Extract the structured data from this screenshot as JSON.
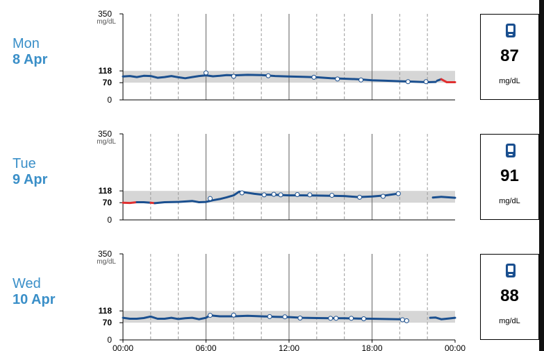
{
  "chart_data": [
    {
      "type": "line",
      "day_name": "Mon",
      "day_date": "8 Apr",
      "y_ticks": [
        "350",
        "118",
        "70",
        "0"
      ],
      "y_unit": "mg/dL",
      "ylim": [
        0,
        350
      ],
      "target_range": [
        70,
        118
      ],
      "xlim": [
        0,
        24
      ],
      "x_tick_labels": [],
      "series": [
        {
          "segments": [
            {
              "color": "#1a4f8f",
              "points": [
                [
                  0,
                  95
                ],
                [
                  0.5,
                  97
                ],
                [
                  1,
                  93
                ],
                [
                  1.5,
                  98
                ],
                [
                  2,
                  97
                ],
                [
                  2.5,
                  90
                ],
                [
                  3,
                  93
                ],
                [
                  3.5,
                  97
                ],
                [
                  4,
                  92
                ],
                [
                  4.5,
                  88
                ],
                [
                  5,
                  93
                ],
                [
                  5.5,
                  97
                ],
                [
                  6,
                  100
                ],
                [
                  6.5,
                  96
                ],
                [
                  7,
                  98
                ],
                [
                  7.5,
                  101
                ],
                [
                  8,
                  100
                ],
                [
                  9,
                  102
                ],
                [
                  10,
                  101
                ],
                [
                  11,
                  97
                ],
                [
                  12,
                  95
                ],
                [
                  13,
                  94
                ],
                [
                  14,
                  92
                ],
                [
                  15,
                  88
                ],
                [
                  16,
                  86
                ],
                [
                  17,
                  84
                ],
                [
                  18,
                  80
                ],
                [
                  19,
                  78
                ],
                [
                  20,
                  76
                ],
                [
                  21,
                  74
                ],
                [
                  22,
                  72
                ],
                [
                  22.6,
                  73
                ]
              ]
            },
            {
              "color": "#1a4f8f",
              "points": [
                [
                  22.7,
                  78
                ],
                [
                  23,
                  84
                ]
              ]
            },
            {
              "color": "#e03030",
              "points": [
                [
                  23,
                  84
                ],
                [
                  23.4,
                  72
                ],
                [
                  24,
                  72
                ]
              ]
            }
          ]
        }
      ],
      "markers": [
        [
          6,
          110
        ],
        [
          8,
          96
        ],
        [
          10.5,
          98
        ],
        [
          13.8,
          92
        ],
        [
          15.5,
          85
        ],
        [
          17.2,
          81
        ],
        [
          20.6,
          74
        ],
        [
          21.9,
          74
        ]
      ],
      "reading": {
        "value": "87",
        "unit": "mg/dL"
      }
    },
    {
      "type": "line",
      "day_name": "Tue",
      "day_date": "9 Apr",
      "y_ticks": [
        "350",
        "118",
        "70",
        "0"
      ],
      "y_unit": "mg/dL",
      "ylim": [
        0,
        350
      ],
      "target_range": [
        70,
        118
      ],
      "xlim": [
        0,
        24
      ],
      "x_tick_labels": [],
      "series": [
        {
          "segments": [
            {
              "color": "#e03030",
              "points": [
                [
                  0,
                  70
                ],
                [
                  0.5,
                  69
                ],
                [
                  1,
                  72
                ]
              ]
            },
            {
              "color": "#1a4f8f",
              "points": [
                [
                  1,
                  72
                ],
                [
                  1.5,
                  72
                ],
                [
                  2,
                  70
                ]
              ]
            },
            {
              "color": "#e03030",
              "points": [
                [
                  2,
                  70
                ],
                [
                  2.3,
                  68
                ]
              ]
            },
            {
              "color": "#1a4f8f",
              "points": [
                [
                  2.3,
                  68
                ],
                [
                  3,
                  72
                ],
                [
                  4,
                  73
                ],
                [
                  5,
                  77
                ],
                [
                  5.5,
                  72
                ],
                [
                  6,
                  73
                ],
                [
                  6.5,
                  80
                ],
                [
                  7,
                  85
                ],
                [
                  7.5,
                  92
                ],
                [
                  8,
                  100
                ],
                [
                  8.4,
                  115
                ],
                [
                  8.8,
                  112
                ],
                [
                  9.5,
                  106
                ],
                [
                  10,
                  103
                ],
                [
                  11,
                  102
                ],
                [
                  12,
                  100
                ],
                [
                  13,
                  100
                ],
                [
                  14,
                  99
                ],
                [
                  15,
                  98
                ],
                [
                  16,
                  97
                ],
                [
                  17,
                  93
                ],
                [
                  18,
                  95
                ],
                [
                  19,
                  100
                ],
                [
                  19.4,
                  103
                ],
                [
                  19.9,
                  107
                ]
              ]
            },
            {
              "color": "#1a4f8f",
              "points": [
                [
                  22.4,
                  91
                ],
                [
                  23,
                  94
                ],
                [
                  24,
                  90
                ]
              ]
            }
          ]
        }
      ],
      "markers": [
        [
          6.3,
          87
        ],
        [
          8.6,
          110
        ],
        [
          10.2,
          102
        ],
        [
          10.9,
          104
        ],
        [
          11.4,
          102
        ],
        [
          12.6,
          103
        ],
        [
          13.5,
          102
        ],
        [
          15.1,
          100
        ],
        [
          17.1,
          92
        ],
        [
          18.8,
          96
        ],
        [
          19.9,
          107
        ]
      ],
      "reading": {
        "value": "91",
        "unit": "mg/dL"
      }
    },
    {
      "type": "line",
      "day_name": "Wed",
      "day_date": "10 Apr",
      "y_ticks": [
        "350",
        "118",
        "70",
        "0"
      ],
      "y_unit": "mg/dL",
      "ylim": [
        0,
        350
      ],
      "target_range": [
        70,
        118
      ],
      "xlim": [
        0,
        24
      ],
      "x_tick_labels": [
        "00:00",
        "06:00",
        "12:00",
        "18:00",
        "00:00"
      ],
      "series": [
        {
          "segments": [
            {
              "color": "#1a4f8f",
              "points": [
                [
                  0,
                  90
                ],
                [
                  0.5,
                  86
                ],
                [
                  1,
                  86
                ],
                [
                  1.5,
                  89
                ],
                [
                  2,
                  95
                ],
                [
                  2.5,
                  86
                ],
                [
                  3,
                  86
                ],
                [
                  3.5,
                  90
                ],
                [
                  4,
                  85
                ],
                [
                  4.5,
                  88
                ],
                [
                  5,
                  90
                ],
                [
                  5.5,
                  84
                ],
                [
                  6,
                  90
                ],
                [
                  6.3,
                  100
                ],
                [
                  6.6,
                  98
                ],
                [
                  7,
                  96
                ],
                [
                  8,
                  96
                ],
                [
                  9,
                  98
                ],
                [
                  10,
                  96
                ],
                [
                  11,
                  94
                ],
                [
                  12,
                  93
                ],
                [
                  13,
                  90
                ],
                [
                  14,
                  89
                ],
                [
                  15,
                  88
                ],
                [
                  16,
                  88
                ],
                [
                  17,
                  87
                ],
                [
                  18,
                  86
                ],
                [
                  19,
                  85
                ],
                [
                  20,
                  84
                ],
                [
                  20.3,
                  82
                ],
                [
                  20.6,
                  78
                ]
              ]
            },
            {
              "color": "#1a4f8f",
              "points": [
                [
                  22.2,
                  90
                ],
                [
                  22.6,
                  91
                ],
                [
                  23,
                  84
                ],
                [
                  23.5,
                  87
                ],
                [
                  24,
                  90
                ]
              ]
            }
          ]
        }
      ],
      "markers": [
        [
          6.3,
          100
        ],
        [
          8,
          101
        ],
        [
          10.6,
          95
        ],
        [
          11.7,
          94
        ],
        [
          12.8,
          89
        ],
        [
          15,
          88
        ],
        [
          15.4,
          88
        ],
        [
          16.5,
          88
        ],
        [
          17.4,
          86
        ],
        [
          20.2,
          82
        ],
        [
          20.5,
          78
        ]
      ],
      "reading": {
        "value": "88",
        "unit": "mg/dL"
      }
    }
  ],
  "colors": {
    "day_label": "#3a8fc8",
    "line_in_range": "#1a4f8f",
    "line_low": "#e03030",
    "target_band": "#d6d6d6",
    "meter_icon": "#1a4f8f"
  },
  "icons": {
    "reading_card": "glucose-meter-icon"
  }
}
